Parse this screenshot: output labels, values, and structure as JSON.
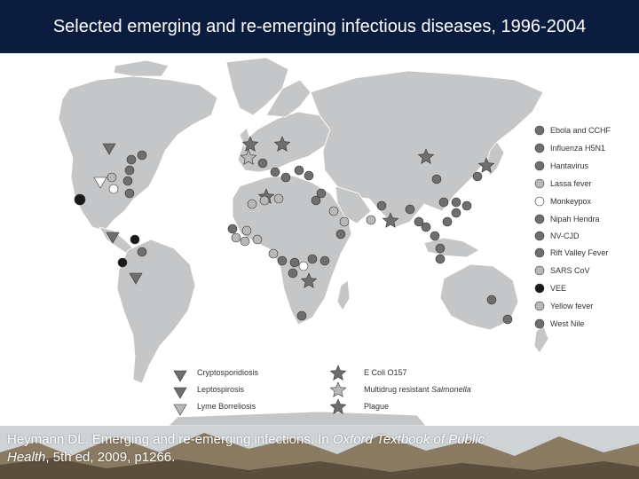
{
  "title": "Selected emerging and re-emerging infectious diseases, 1996-2004",
  "colors": {
    "header_bg": "#0b1c3f",
    "land": "#c4c6c8",
    "marker_dark": "#1a1a1a",
    "marker_mid": "#6e6e6e",
    "marker_light": "#b8b8b8",
    "marker_white": "#ffffff"
  },
  "legend_circles": [
    {
      "label": "Ebola and CCHF",
      "shade": "mid"
    },
    {
      "label": "Influenza H5N1",
      "shade": "mid"
    },
    {
      "label": "Hantavirus",
      "shade": "mid"
    },
    {
      "label": "Lassa fever",
      "shade": "light"
    },
    {
      "label": "Monkeypox",
      "shade": "white"
    },
    {
      "label": "Nipah Hendra",
      "shade": "mid"
    },
    {
      "label": "NV-CJD",
      "shade": "mid"
    },
    {
      "label": "Rift Valley Fever",
      "shade": "mid"
    },
    {
      "label": "SARS CoV",
      "shade": "light"
    },
    {
      "label": "VEE",
      "shade": "dark"
    },
    {
      "label": "Yellow fever",
      "shade": "light"
    },
    {
      "label": "West Nile",
      "shade": "mid"
    }
  ],
  "legend_triangles": [
    {
      "label": "Cryptosporidiosis",
      "shade": "mid"
    },
    {
      "label": "Leptospirosis",
      "shade": "mid"
    },
    {
      "label": "Lyme Borreliosis",
      "shade": "light"
    }
  ],
  "legend_stars": [
    {
      "label": "E Coli O157",
      "shade": "mid"
    },
    {
      "label": "Multidrug resistant",
      "label_italic": "Salmonella",
      "shade": "light"
    },
    {
      "label": "Plague",
      "shade": "mid"
    }
  ],
  "citation": {
    "text_before": "Heymann DL. Emerging and re-emerging infections. In ",
    "book_title_part1": "Oxford Textbook of Public",
    "book_title_part2": "Health",
    "text_after": ", 5th ed, 2009, p1266."
  }
}
